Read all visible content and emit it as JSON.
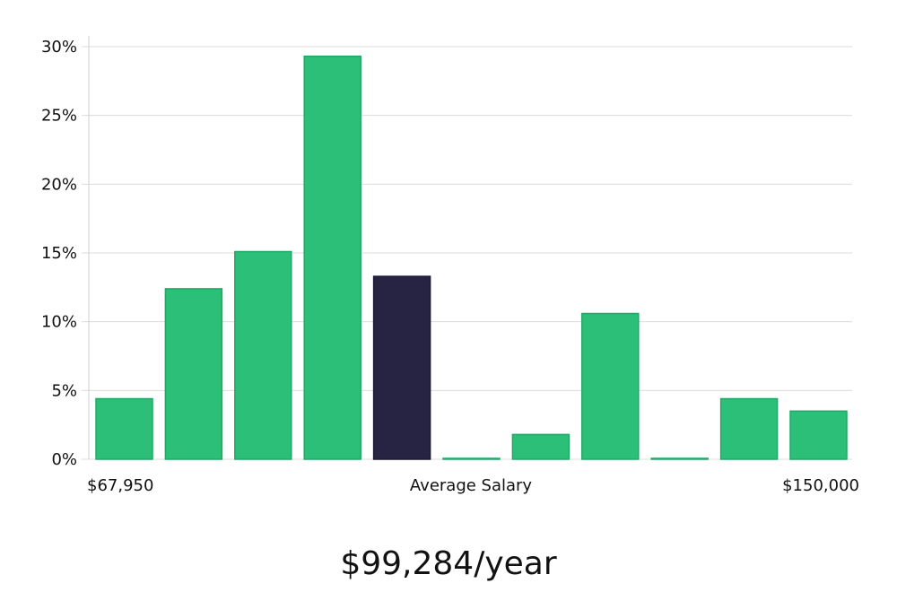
{
  "chart_data": {
    "type": "bar",
    "categories": [
      "1",
      "2",
      "3",
      "4",
      "5",
      "6",
      "7",
      "8",
      "9",
      "10",
      "11"
    ],
    "values": [
      4.4,
      12.4,
      15.1,
      29.3,
      13.3,
      0.05,
      1.8,
      10.6,
      0.05,
      4.4,
      3.5
    ],
    "highlight_index": 4,
    "ylim": [
      0,
      30
    ],
    "yticks": [
      0,
      5,
      10,
      15,
      20,
      25,
      30
    ],
    "ytick_suffix": "%",
    "grid": true,
    "x_labels": {
      "left": "$67,950",
      "center": "Average Salary",
      "right": "$150,000"
    },
    "colors": {
      "bar": "#2bbf78",
      "bar_stroke": "#22a866",
      "highlight": "#272343"
    }
  },
  "caption": "$99,284/year"
}
